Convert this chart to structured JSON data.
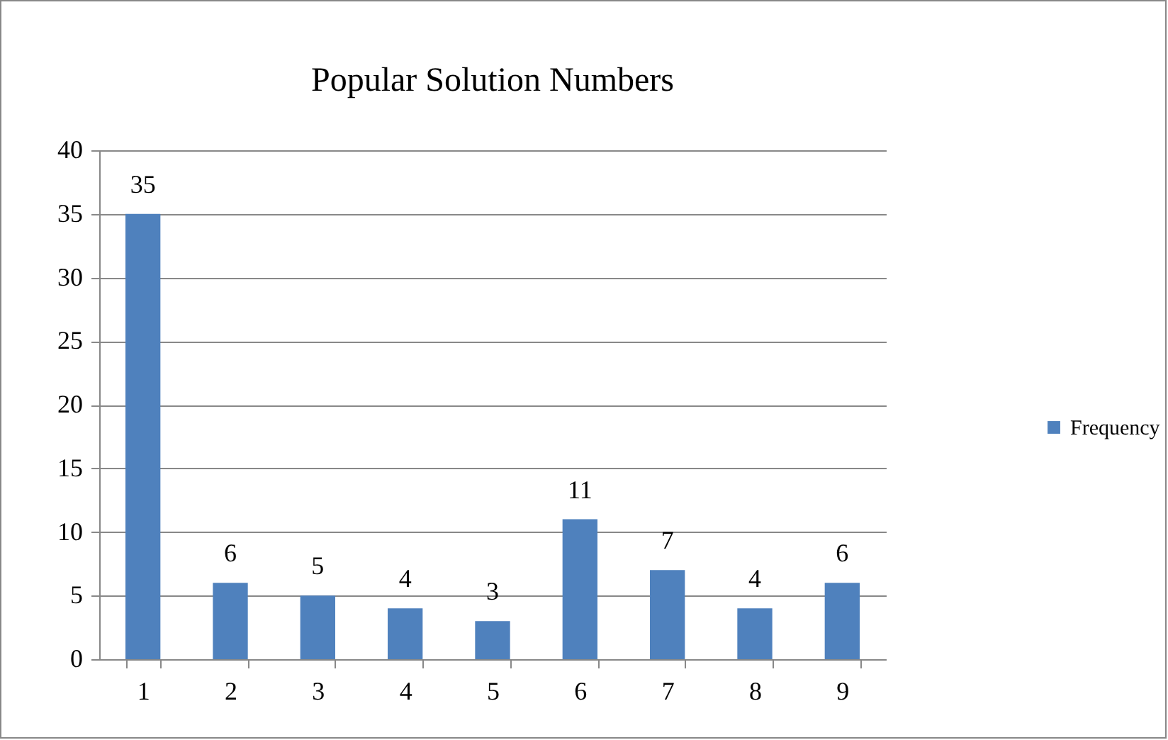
{
  "chart_data": {
    "type": "bar",
    "title": "Popular Solution Numbers",
    "categories": [
      "1",
      "2",
      "3",
      "4",
      "5",
      "6",
      "7",
      "8",
      "9"
    ],
    "series": [
      {
        "name": "Frequency",
        "color": "#4f81bd",
        "values": [
          35,
          6,
          5,
          4,
          3,
          11,
          7,
          4,
          6
        ]
      }
    ],
    "ylim": [
      0,
      40
    ],
    "yticks": [
      0,
      5,
      10,
      15,
      20,
      25,
      30,
      35,
      40
    ],
    "grid": "y",
    "legend": "right",
    "data_labels": true
  }
}
